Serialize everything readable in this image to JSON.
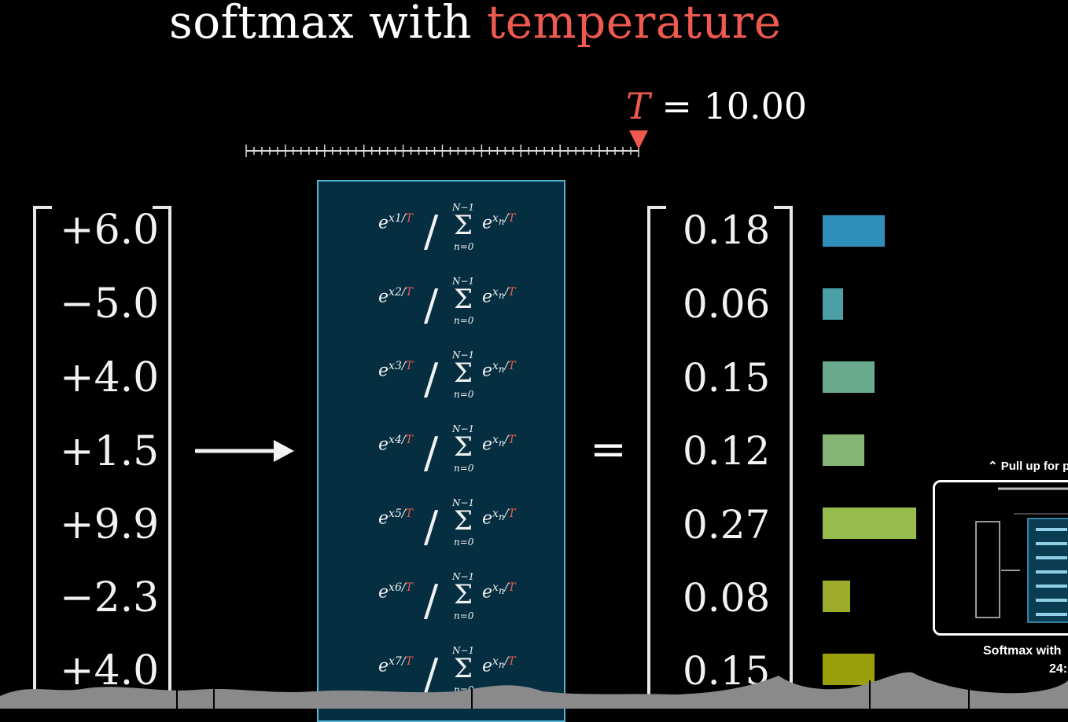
{
  "title": {
    "main": "softmax with",
    "accent": "temperature"
  },
  "temperature": {
    "symbol": "T",
    "equals": "=",
    "value": "10.00"
  },
  "slider": {
    "level": 1.0
  },
  "inputs": [
    "+6.0",
    "−5.0",
    "+4.0",
    "+1.5",
    "+9.9",
    "−2.3",
    "+4.0"
  ],
  "formulas": [
    {
      "index": "1"
    },
    {
      "index": "2"
    },
    {
      "index": "3"
    },
    {
      "index": "4"
    },
    {
      "index": "5"
    },
    {
      "index": "6"
    },
    {
      "index": "7"
    }
  ],
  "equals_sign": "=",
  "outputs": [
    "0.18",
    "0.06",
    "0.15",
    "0.12",
    "0.27",
    "0.08",
    "0.15"
  ],
  "bar_values": [
    0.18,
    0.06,
    0.15,
    0.12,
    0.27,
    0.08,
    0.15
  ],
  "bar_colors": [
    "#2e8fb8",
    "#4aa0a6",
    "#6aab8f",
    "#86b676",
    "#98bb4e",
    "#9cac2a",
    "#9aa00c"
  ],
  "colors": {
    "accent": "#ee5a4f",
    "box_border": "#55b3d3",
    "box_fill": "#052f41"
  },
  "video_preview": {
    "pull_up": "Pull up for p",
    "title": "Softmax with",
    "time": "24:"
  }
}
